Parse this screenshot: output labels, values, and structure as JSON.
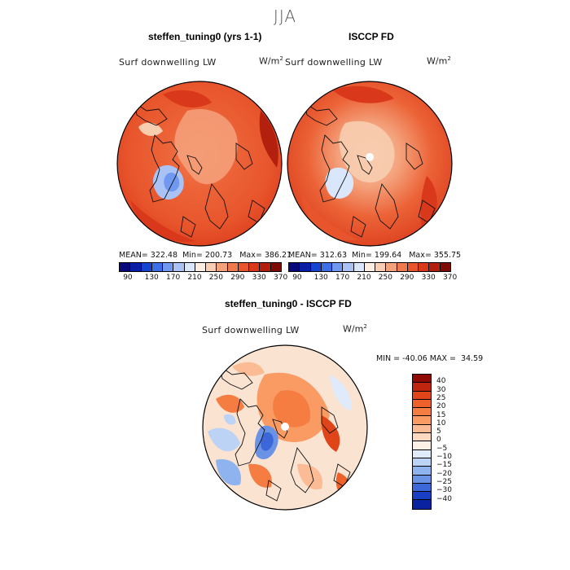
{
  "figure": {
    "season": "JJA"
  },
  "panel1": {
    "title": "steffen_tuning0 (yrs 1-1)",
    "variable": "Surf downwelling LW",
    "units": "W/m",
    "units_sup": "2",
    "stats": {
      "mean": "MEAN= 322.48",
      "min": "Min= 200.73",
      "max": "Max= 386.21"
    }
  },
  "panel2": {
    "title": "ISCCP FD",
    "variable": "Surf downwelling LW",
    "units": "W/m",
    "units_sup": "2",
    "stats": {
      "mean": "MEAN= 312.63",
      "min": "Min= 199.64",
      "max": "Max= 355.75"
    }
  },
  "panel3": {
    "title": "steffen_tuning0 - ISCCP FD",
    "variable": "Surf downwelling LW",
    "units": "W/m",
    "units_sup": "2",
    "stats_text": "MIN = -40.06 MAX =  34.59"
  },
  "colorbar_top": {
    "ticks": [
      "90",
      "130",
      "170",
      "210",
      "250",
      "290",
      "330",
      "370"
    ],
    "colors": [
      "#08087a",
      "#0a1fa8",
      "#1743d1",
      "#3a6fe6",
      "#7198f0",
      "#a9c3f7",
      "#d9e6fb",
      "#fbeee0",
      "#f8cdb0",
      "#f4a27c",
      "#ef7a4e",
      "#e8552c",
      "#d9391a",
      "#b4200e",
      "#7d0a05"
    ]
  },
  "colorbar_diff": {
    "ticks": [
      "40",
      "30",
      "25",
      "20",
      "15",
      "10",
      "5",
      "0",
      "−5",
      "−10",
      "−15",
      "−20",
      "−25",
      "−30",
      "−40"
    ],
    "colors": [
      "#8f0a05",
      "#c02510",
      "#e04519",
      "#ee612a",
      "#f57d41",
      "#f99b62",
      "#fbbc95",
      "#fdd9c2",
      "#fdf0e5",
      "#dfeafb",
      "#bcd3f6",
      "#8fb3ef",
      "#6a93e6",
      "#3c67d8",
      "#1a3fc4",
      "#0a22a0"
    ]
  }
}
